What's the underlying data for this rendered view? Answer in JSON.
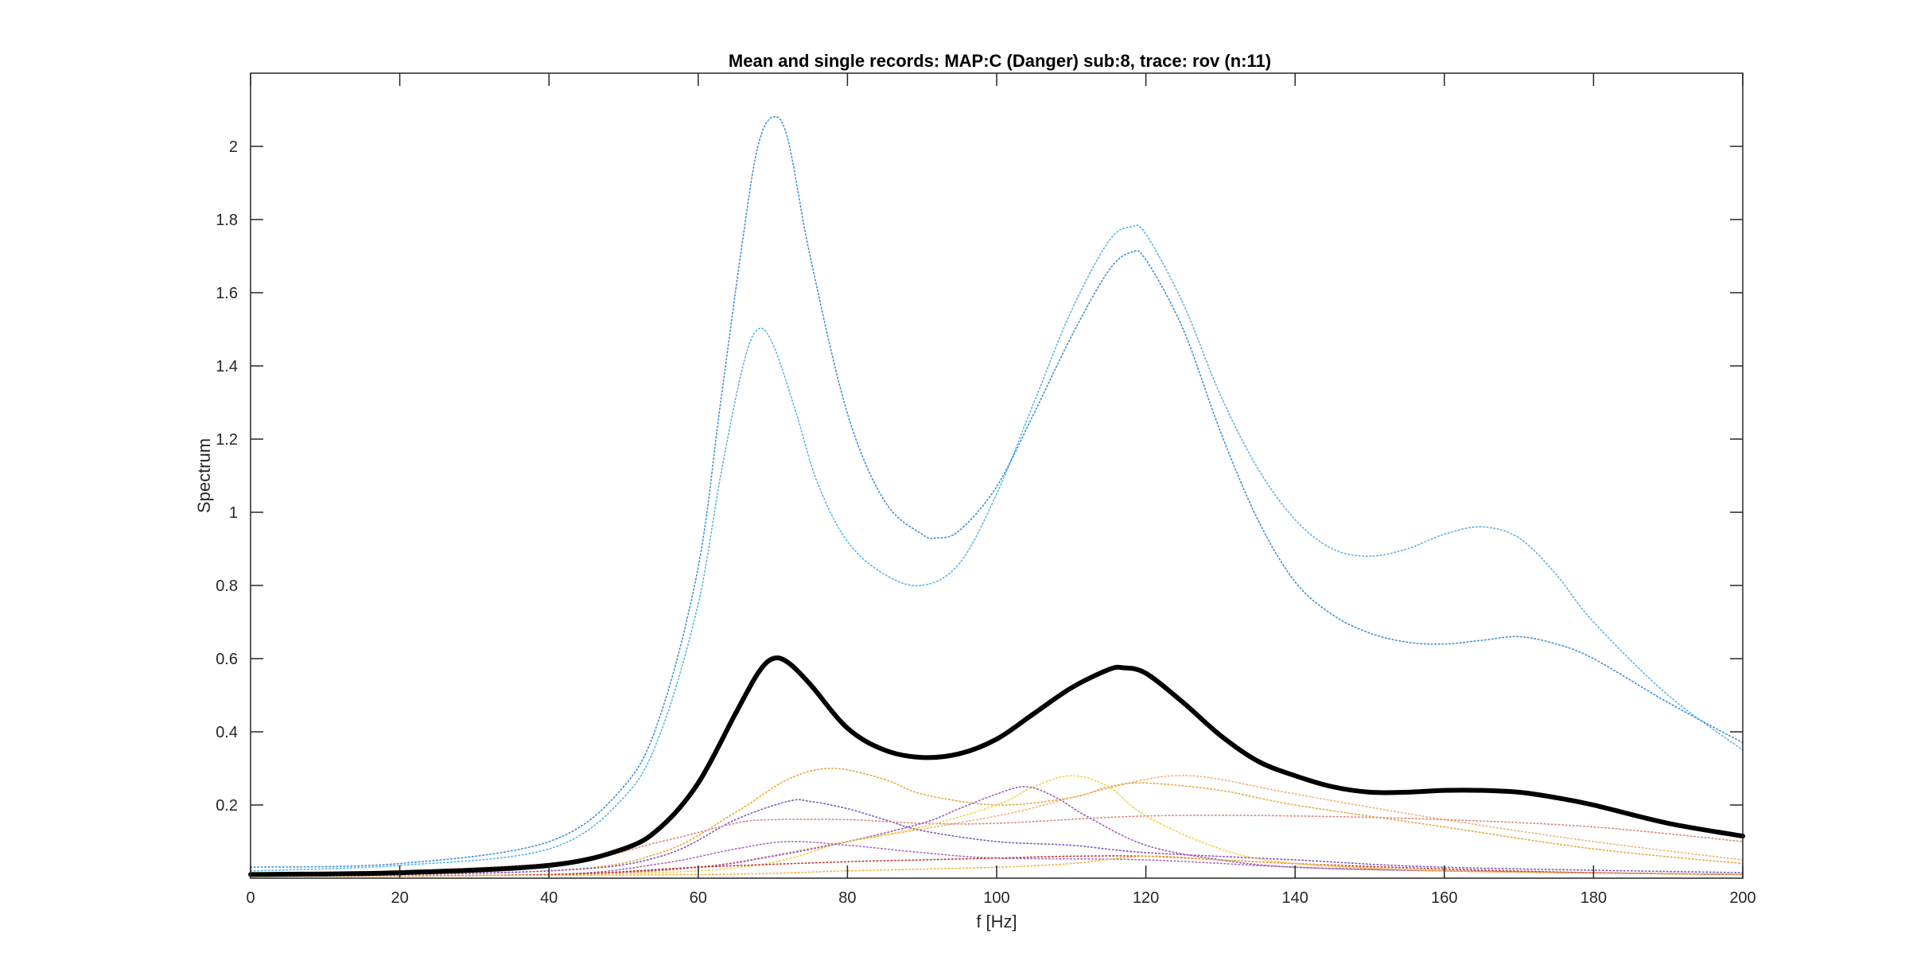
{
  "chart_data": {
    "type": "line",
    "title": "Mean and single records: MAP:C (Danger) sub:8, trace: rov (n:11)",
    "xlabel": "f [Hz]",
    "ylabel": "Spectrum",
    "xlim": [
      0,
      200
    ],
    "ylim": [
      0,
      2.2
    ],
    "xticks": [
      "0",
      "20",
      "40",
      "60",
      "80",
      "100",
      "120",
      "140",
      "160",
      "180",
      "200"
    ],
    "yticks": [
      "0.2",
      "0.4",
      "0.6",
      "0.8",
      "1",
      "1.2",
      "1.4",
      "1.6",
      "1.8",
      "2"
    ],
    "grid": false,
    "series": [
      {
        "color": "#000000",
        "style": "solid",
        "x": [
          0,
          20,
          40,
          50,
          55,
          60,
          65,
          68,
          70,
          72,
          75,
          80,
          85,
          90,
          95,
          100,
          105,
          110,
          115,
          117,
          120,
          125,
          130,
          135,
          140,
          145,
          150,
          155,
          160,
          165,
          170,
          175,
          180,
          190,
          200
        ],
        "y": [
          0.01,
          0.015,
          0.035,
          0.08,
          0.14,
          0.26,
          0.45,
          0.56,
          0.6,
          0.59,
          0.53,
          0.41,
          0.35,
          0.33,
          0.34,
          0.38,
          0.45,
          0.52,
          0.57,
          0.575,
          0.56,
          0.48,
          0.39,
          0.32,
          0.28,
          0.25,
          0.235,
          0.235,
          0.24,
          0.24,
          0.235,
          0.22,
          0.2,
          0.15,
          0.115
        ]
      },
      {
        "color": "#56B4E9",
        "style": "dotted",
        "x": [
          0,
          20,
          40,
          50,
          55,
          60,
          63,
          66,
          68,
          70,
          73,
          76,
          80,
          85,
          90,
          95,
          100,
          105,
          110,
          115,
          118,
          120,
          125,
          130,
          135,
          140,
          145,
          150,
          155,
          160,
          165,
          170,
          175,
          180,
          190,
          200
        ],
        "y": [
          0.02,
          0.035,
          0.08,
          0.22,
          0.4,
          0.75,
          1.1,
          1.4,
          1.5,
          1.46,
          1.28,
          1.08,
          0.92,
          0.83,
          0.8,
          0.86,
          1.05,
          1.3,
          1.55,
          1.74,
          1.78,
          1.76,
          1.57,
          1.32,
          1.12,
          0.98,
          0.9,
          0.88,
          0.9,
          0.94,
          0.96,
          0.93,
          0.83,
          0.7,
          0.5,
          0.35
        ]
      },
      {
        "color": "#3A8FD8",
        "style": "dotted",
        "x": [
          0,
          20,
          40,
          50,
          55,
          60,
          63,
          66,
          68,
          70,
          72,
          75,
          80,
          85,
          90,
          92,
          95,
          100,
          105,
          110,
          115,
          118,
          120,
          125,
          130,
          135,
          140,
          145,
          150,
          155,
          160,
          165,
          170,
          175,
          180,
          190,
          200
        ],
        "y": [
          0.03,
          0.04,
          0.1,
          0.25,
          0.45,
          0.85,
          1.3,
          1.75,
          2.0,
          2.08,
          2.02,
          1.7,
          1.27,
          1.03,
          0.94,
          0.93,
          0.95,
          1.07,
          1.27,
          1.48,
          1.66,
          1.71,
          1.69,
          1.5,
          1.22,
          0.98,
          0.81,
          0.72,
          0.67,
          0.645,
          0.64,
          0.65,
          0.66,
          0.64,
          0.6,
          0.48,
          0.37
        ]
      },
      {
        "color": "#E5A93C",
        "style": "dotted",
        "x": [
          0,
          40,
          55,
          65,
          72,
          78,
          85,
          90,
          100,
          110,
          115,
          120,
          130,
          140,
          160,
          180,
          200
        ],
        "y": [
          0.005,
          0.02,
          0.07,
          0.18,
          0.27,
          0.3,
          0.27,
          0.23,
          0.2,
          0.22,
          0.25,
          0.26,
          0.24,
          0.2,
          0.14,
          0.08,
          0.04
        ]
      },
      {
        "color": "#F0B27A",
        "style": "dotted",
        "x": [
          0,
          40,
          60,
          80,
          100,
          110,
          120,
          125,
          130,
          140,
          160,
          180,
          200
        ],
        "y": [
          0.005,
          0.01,
          0.03,
          0.1,
          0.17,
          0.22,
          0.27,
          0.28,
          0.27,
          0.23,
          0.16,
          0.1,
          0.05
        ]
      },
      {
        "color": "#7E57C2",
        "style": "dotted",
        "x": [
          0,
          40,
          55,
          65,
          72,
          75,
          80,
          85,
          90,
          100,
          110,
          120,
          140,
          160,
          200
        ],
        "y": [
          0.005,
          0.02,
          0.06,
          0.16,
          0.21,
          0.21,
          0.19,
          0.16,
          0.13,
          0.1,
          0.09,
          0.07,
          0.05,
          0.03,
          0.015
        ]
      },
      {
        "color": "#D98880",
        "style": "dotted",
        "x": [
          0,
          40,
          55,
          65,
          70,
          80,
          90,
          100,
          120,
          140,
          160,
          180,
          200
        ],
        "y": [
          0.005,
          0.04,
          0.1,
          0.15,
          0.16,
          0.16,
          0.15,
          0.15,
          0.17,
          0.17,
          0.16,
          0.14,
          0.1
        ]
      },
      {
        "color": "#9B59B6",
        "style": "dotted",
        "x": [
          0,
          40,
          60,
          70,
          80,
          90,
          95,
          100,
          104,
          108,
          112,
          120,
          130,
          140,
          160,
          200
        ],
        "y": [
          0.005,
          0.01,
          0.03,
          0.06,
          0.1,
          0.15,
          0.19,
          0.23,
          0.25,
          0.22,
          0.17,
          0.09,
          0.05,
          0.03,
          0.02,
          0.01
        ]
      },
      {
        "color": "#F4D03F",
        "style": "dotted",
        "x": [
          0,
          60,
          80,
          90,
          100,
          105,
          110,
          115,
          120,
          130,
          140,
          160,
          200
        ],
        "y": [
          0.005,
          0.02,
          0.1,
          0.14,
          0.2,
          0.25,
          0.28,
          0.25,
          0.17,
          0.08,
          0.04,
          0.02,
          0.01
        ]
      },
      {
        "color": "#A569BD",
        "style": "dotted",
        "x": [
          0,
          40,
          55,
          65,
          72,
          80,
          90,
          100,
          120,
          140,
          160,
          200
        ],
        "y": [
          0.005,
          0.01,
          0.04,
          0.08,
          0.1,
          0.09,
          0.07,
          0.055,
          0.05,
          0.03,
          0.02,
          0.01
        ]
      },
      {
        "color": "#C0392B",
        "style": "dotted",
        "x": [
          0,
          40,
          60,
          80,
          90,
          100,
          110,
          120,
          130,
          140,
          160,
          180,
          200
        ],
        "y": [
          0.005,
          0.01,
          0.03,
          0.045,
          0.05,
          0.055,
          0.06,
          0.06,
          0.05,
          0.04,
          0.025,
          0.015,
          0.01
        ]
      },
      {
        "color": "#F5B041",
        "style": "dotted",
        "x": [
          0,
          60,
          80,
          100,
          110,
          120,
          130,
          140,
          160,
          200
        ],
        "y": [
          0.005,
          0.01,
          0.02,
          0.03,
          0.04,
          0.06,
          0.05,
          0.04,
          0.02,
          0.01
        ]
      }
    ]
  }
}
